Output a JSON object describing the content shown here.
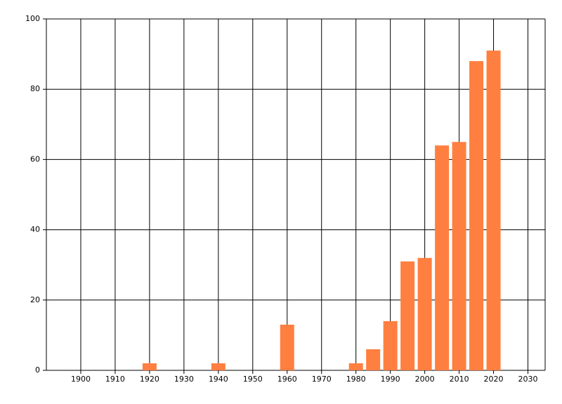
{
  "chart_data": {
    "type": "bar",
    "x": [
      1920,
      1940,
      1960,
      1980,
      1985,
      1990,
      1995,
      2000,
      2005,
      2010,
      2015,
      2020
    ],
    "values": [
      2,
      2,
      13,
      2,
      6,
      14,
      31,
      32,
      64,
      65,
      88,
      91
    ],
    "color": "#ff7f40",
    "xlim": [
      1890,
      2035
    ],
    "xticks": [
      1900,
      1910,
      1920,
      1930,
      1940,
      1950,
      1960,
      1970,
      1980,
      1990,
      2000,
      2010,
      2020,
      2030
    ],
    "ylim": [
      0,
      100
    ],
    "yticks": [
      0,
      20,
      40,
      60,
      80,
      100
    ],
    "grid": true
  }
}
